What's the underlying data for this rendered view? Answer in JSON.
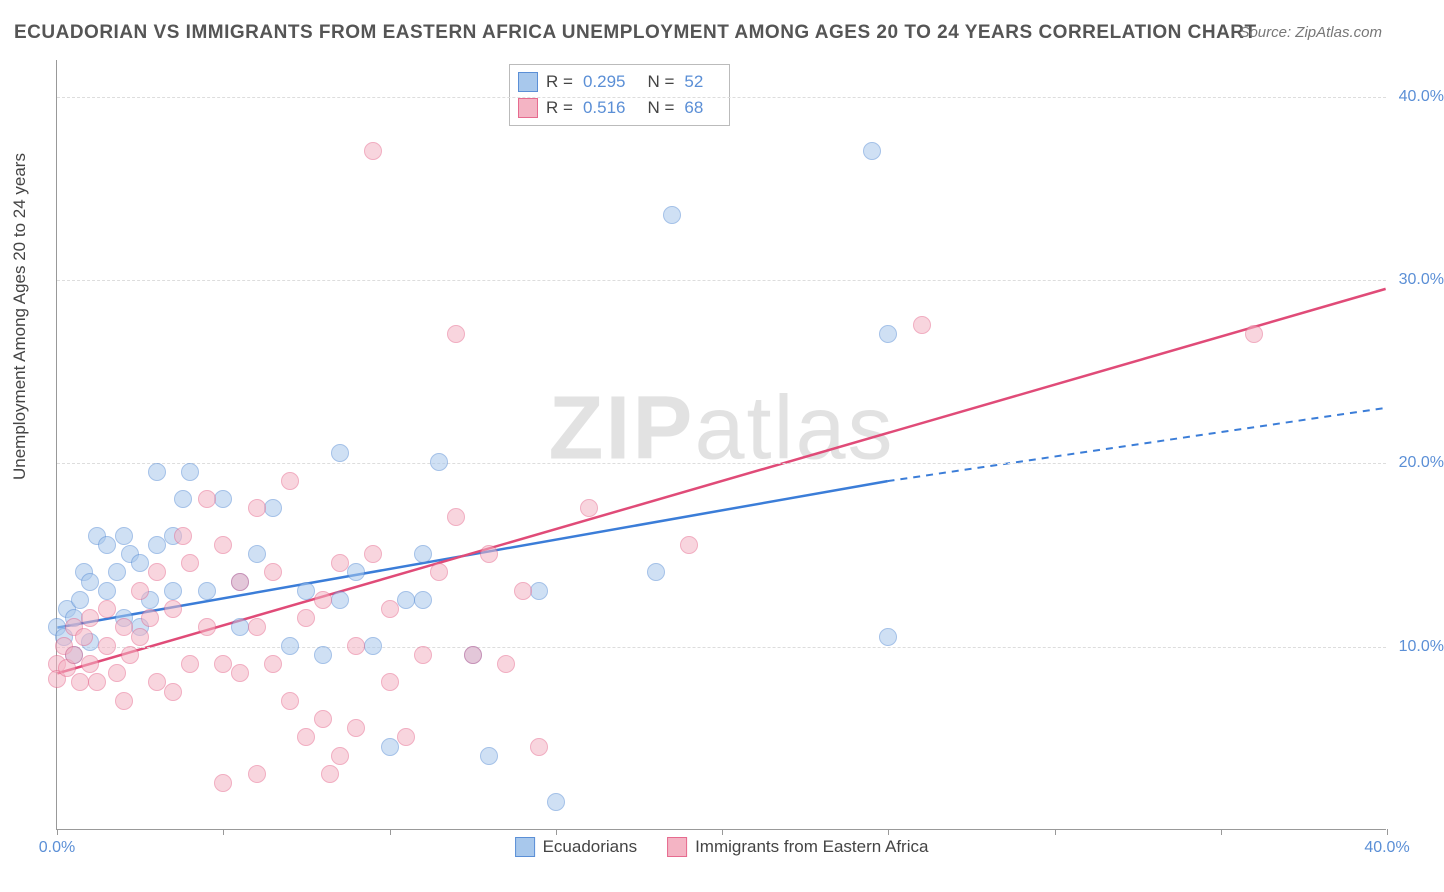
{
  "title": "ECUADORIAN VS IMMIGRANTS FROM EASTERN AFRICA UNEMPLOYMENT AMONG AGES 20 TO 24 YEARS CORRELATION CHART",
  "source": "Source: ZipAtlas.com",
  "ylabel": "Unemployment Among Ages 20 to 24 years",
  "watermark_bold": "ZIP",
  "watermark_light": "atlas",
  "chart": {
    "type": "scatter",
    "xlim": [
      0,
      40
    ],
    "ylim": [
      0,
      42
    ],
    "xticks": [
      0,
      5,
      10,
      15,
      20,
      25,
      30,
      35,
      40
    ],
    "xticks_labeled": [
      {
        "v": 0,
        "label": "0.0%"
      },
      {
        "v": 40,
        "label": "40.0%"
      }
    ],
    "yticks": [
      {
        "v": 10,
        "label": "10.0%"
      },
      {
        "v": 20,
        "label": "20.0%"
      },
      {
        "v": 30,
        "label": "30.0%"
      },
      {
        "v": 40,
        "label": "40.0%"
      }
    ],
    "grid_color": "#dddddd",
    "background_color": "#ffffff",
    "marker_size": 18,
    "series": [
      {
        "name": "Ecuadorians",
        "fill": "#a8c8ec",
        "stroke": "#5b8fd6",
        "fill_opacity": 0.55,
        "r": 0.295,
        "n": 52,
        "trend": {
          "x1": 0,
          "y1": 11.0,
          "x2": 25,
          "y2": 19.0,
          "dash_x2": 40,
          "dash_y2": 23.0,
          "color": "#3b7dd8",
          "width": 2.5
        },
        "points": [
          [
            0,
            11
          ],
          [
            0.2,
            10.5
          ],
          [
            0.3,
            12
          ],
          [
            0.5,
            11.5
          ],
          [
            0.5,
            9.5
          ],
          [
            0.7,
            12.5
          ],
          [
            0.8,
            14
          ],
          [
            1,
            10.2
          ],
          [
            1,
            13.5
          ],
          [
            1.2,
            16
          ],
          [
            1.5,
            13
          ],
          [
            1.5,
            15.5
          ],
          [
            1.8,
            14
          ],
          [
            2,
            16
          ],
          [
            2,
            11.5
          ],
          [
            2.2,
            15
          ],
          [
            2.5,
            14.5
          ],
          [
            2.5,
            11
          ],
          [
            2.8,
            12.5
          ],
          [
            3,
            15.5
          ],
          [
            3,
            19.5
          ],
          [
            3.5,
            13
          ],
          [
            3.5,
            16
          ],
          [
            3.8,
            18
          ],
          [
            4,
            19.5
          ],
          [
            4.5,
            13
          ],
          [
            5,
            18
          ],
          [
            5.5,
            13.5
          ],
          [
            5.5,
            11
          ],
          [
            6,
            15
          ],
          [
            6.5,
            17.5
          ],
          [
            7,
            10
          ],
          [
            7.5,
            13
          ],
          [
            8,
            9.5
          ],
          [
            8.5,
            12.5
          ],
          [
            8.5,
            20.5
          ],
          [
            9,
            14
          ],
          [
            9.5,
            10
          ],
          [
            10,
            4.5
          ],
          [
            10.5,
            12.5
          ],
          [
            11,
            12.5
          ],
          [
            11,
            15
          ],
          [
            11.5,
            20
          ],
          [
            12.5,
            9.5
          ],
          [
            13,
            4
          ],
          [
            14.5,
            13
          ],
          [
            15,
            1.5
          ],
          [
            18,
            14
          ],
          [
            18.5,
            33.5
          ],
          [
            24.5,
            37
          ],
          [
            25,
            27
          ],
          [
            25,
            10.5
          ]
        ]
      },
      {
        "name": "Immigrants from Eastern Africa",
        "fill": "#f4b4c4",
        "stroke": "#e66b8f",
        "fill_opacity": 0.55,
        "r": 0.516,
        "n": 68,
        "trend": {
          "x1": 0,
          "y1": 8.5,
          "x2": 40,
          "y2": 29.5,
          "color": "#e04b78",
          "width": 2.5
        },
        "points": [
          [
            0,
            9
          ],
          [
            0,
            8.2
          ],
          [
            0.2,
            10
          ],
          [
            0.3,
            8.8
          ],
          [
            0.5,
            9.5
          ],
          [
            0.5,
            11
          ],
          [
            0.7,
            8
          ],
          [
            0.8,
            10.5
          ],
          [
            1,
            9
          ],
          [
            1,
            11.5
          ],
          [
            1.2,
            8
          ],
          [
            1.5,
            10
          ],
          [
            1.5,
            12
          ],
          [
            1.8,
            8.5
          ],
          [
            2,
            11
          ],
          [
            2,
            7
          ],
          [
            2.2,
            9.5
          ],
          [
            2.5,
            13
          ],
          [
            2.5,
            10.5
          ],
          [
            2.8,
            11.5
          ],
          [
            3,
            8
          ],
          [
            3,
            14
          ],
          [
            3.5,
            7.5
          ],
          [
            3.5,
            12
          ],
          [
            3.8,
            16
          ],
          [
            4,
            9
          ],
          [
            4,
            14.5
          ],
          [
            4.5,
            11
          ],
          [
            4.5,
            18
          ],
          [
            5,
            9
          ],
          [
            5,
            15.5
          ],
          [
            5.5,
            8.5
          ],
          [
            5.5,
            13.5
          ],
          [
            6,
            11
          ],
          [
            6,
            17.5
          ],
          [
            6.5,
            9
          ],
          [
            6.5,
            14
          ],
          [
            7,
            7
          ],
          [
            7,
            19
          ],
          [
            7.5,
            11.5
          ],
          [
            7.5,
            5
          ],
          [
            8,
            12.5
          ],
          [
            8,
            6
          ],
          [
            8.5,
            14.5
          ],
          [
            8.5,
            4
          ],
          [
            9,
            10
          ],
          [
            9,
            5.5
          ],
          [
            9.5,
            15
          ],
          [
            10,
            8
          ],
          [
            10,
            12
          ],
          [
            10.5,
            5
          ],
          [
            11,
            9.5
          ],
          [
            11.5,
            14
          ],
          [
            12,
            17
          ],
          [
            12,
            27
          ],
          [
            12.5,
            9.5
          ],
          [
            13,
            15
          ],
          [
            13.5,
            9
          ],
          [
            14,
            13
          ],
          [
            9.5,
            37
          ],
          [
            14.5,
            4.5
          ],
          [
            5,
            2.5
          ],
          [
            6,
            3
          ],
          [
            16,
            17.5
          ],
          [
            19,
            15.5
          ],
          [
            26,
            27.5
          ],
          [
            36,
            27
          ],
          [
            8.2,
            3
          ]
        ]
      }
    ]
  },
  "legend_box": {
    "rows": [
      {
        "swatch_fill": "#a8c8ec",
        "swatch_stroke": "#5b8fd6",
        "r_label": "R =",
        "r_val": "0.295",
        "n_label": "N =",
        "n_val": "52"
      },
      {
        "swatch_fill": "#f4b4c4",
        "swatch_stroke": "#e66b8f",
        "r_label": "R =",
        "r_val": "0.516",
        "n_label": "N =",
        "n_val": "68"
      }
    ]
  },
  "bottom_legend": [
    {
      "swatch_fill": "#a8c8ec",
      "swatch_stroke": "#5b8fd6",
      "label": "Ecuadorians"
    },
    {
      "swatch_fill": "#f4b4c4",
      "swatch_stroke": "#e66b8f",
      "label": "Immigrants from Eastern Africa"
    }
  ]
}
